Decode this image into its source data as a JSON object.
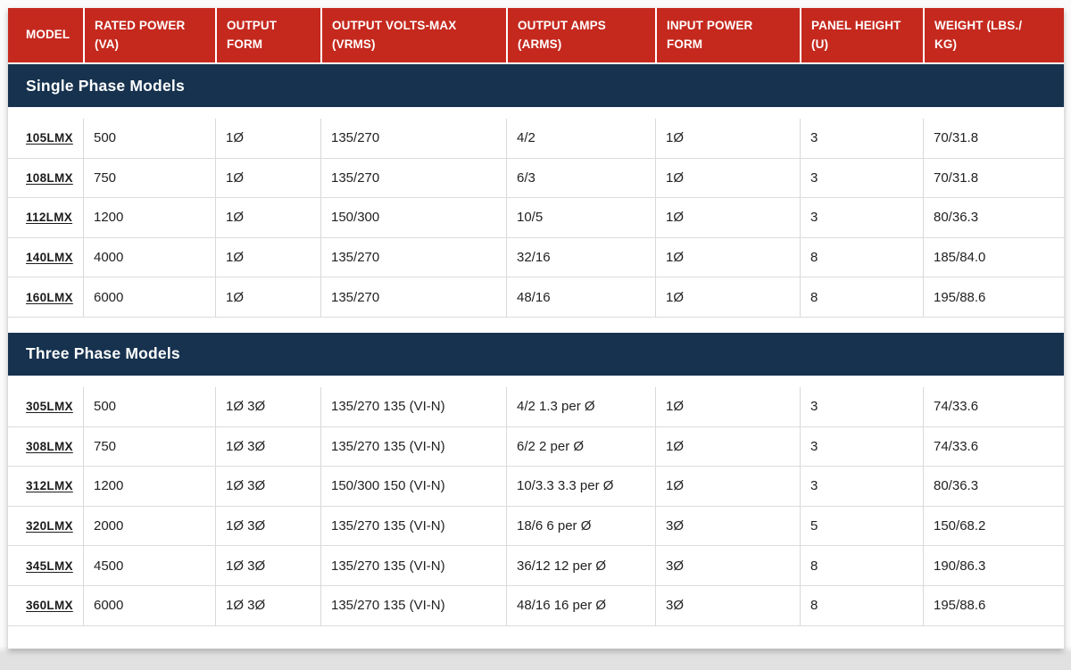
{
  "colors": {
    "header_red": "#C5291E",
    "section_navy": "#16324F",
    "row_border": "#dcdcdc",
    "cell_divider": "#d9d9d9",
    "body_text": "#222222",
    "header_text": "#ffffff"
  },
  "table": {
    "columns": [
      {
        "key": "model",
        "label": "MODEL"
      },
      {
        "key": "rated-power",
        "label": "RATED POWER\n(VA)"
      },
      {
        "key": "output-form",
        "label": "OUTPUT\nFORM"
      },
      {
        "key": "output-volts-max",
        "label": "OUTPUT VOLTS-MAX\n(VRMS)"
      },
      {
        "key": "output-amps",
        "label": "OUTPUT AMPS\n(ARMS)"
      },
      {
        "key": "input-power-form",
        "label": "INPUT POWER\nFORM"
      },
      {
        "key": "panel-height",
        "label": "PANEL HEIGHT\n(U)"
      },
      {
        "key": "weight",
        "label": "WEIGHT (LBS./\nKG)"
      }
    ],
    "sections": [
      {
        "title": "Single Phase Models",
        "rows": [
          [
            "105LMX",
            "500",
            "1Ø",
            "135/270",
            "4/2",
            "1Ø",
            "3",
            "70/31.8"
          ],
          [
            "108LMX",
            "750",
            "1Ø",
            "135/270",
            "6/3",
            "1Ø",
            "3",
            "70/31.8"
          ],
          [
            "112LMX",
            "1200",
            "1Ø",
            "150/300",
            "10/5",
            "1Ø",
            "3",
            "80/36.3"
          ],
          [
            "140LMX",
            "4000",
            "1Ø",
            "135/270",
            "32/16",
            "1Ø",
            "8",
            "185/84.0"
          ],
          [
            "160LMX",
            "6000",
            "1Ø",
            "135/270",
            "48/16",
            "1Ø",
            "8",
            "195/88.6"
          ]
        ]
      },
      {
        "title": "Three Phase Models",
        "rows": [
          [
            "305LMX",
            "500",
            "1Ø 3Ø",
            "135/270 135 (VI-N)",
            "4/2 1.3 per Ø",
            "1Ø",
            "3",
            "74/33.6"
          ],
          [
            "308LMX",
            "750",
            "1Ø 3Ø",
            "135/270 135 (VI-N)",
            "6/2 2 per Ø",
            "1Ø",
            "3",
            "74/33.6"
          ],
          [
            "312LMX",
            "1200",
            "1Ø 3Ø",
            "150/300 150 (VI-N)",
            "10/3.3 3.3 per Ø",
            "1Ø",
            "3",
            "80/36.3"
          ],
          [
            "320LMX",
            "2000",
            "1Ø 3Ø",
            "135/270 135 (VI-N)",
            "18/6 6 per Ø",
            "3Ø",
            "5",
            "150/68.2"
          ],
          [
            "345LMX",
            "4500",
            "1Ø 3Ø",
            "135/270 135 (VI-N)",
            "36/12 12 per Ø",
            "3Ø",
            "8",
            "190/86.3"
          ],
          [
            "360LMX",
            "6000",
            "1Ø 3Ø",
            "135/270 135 (VI-N)",
            "48/16 16 per Ø",
            "3Ø",
            "8",
            "195/88.6"
          ]
        ]
      }
    ]
  }
}
